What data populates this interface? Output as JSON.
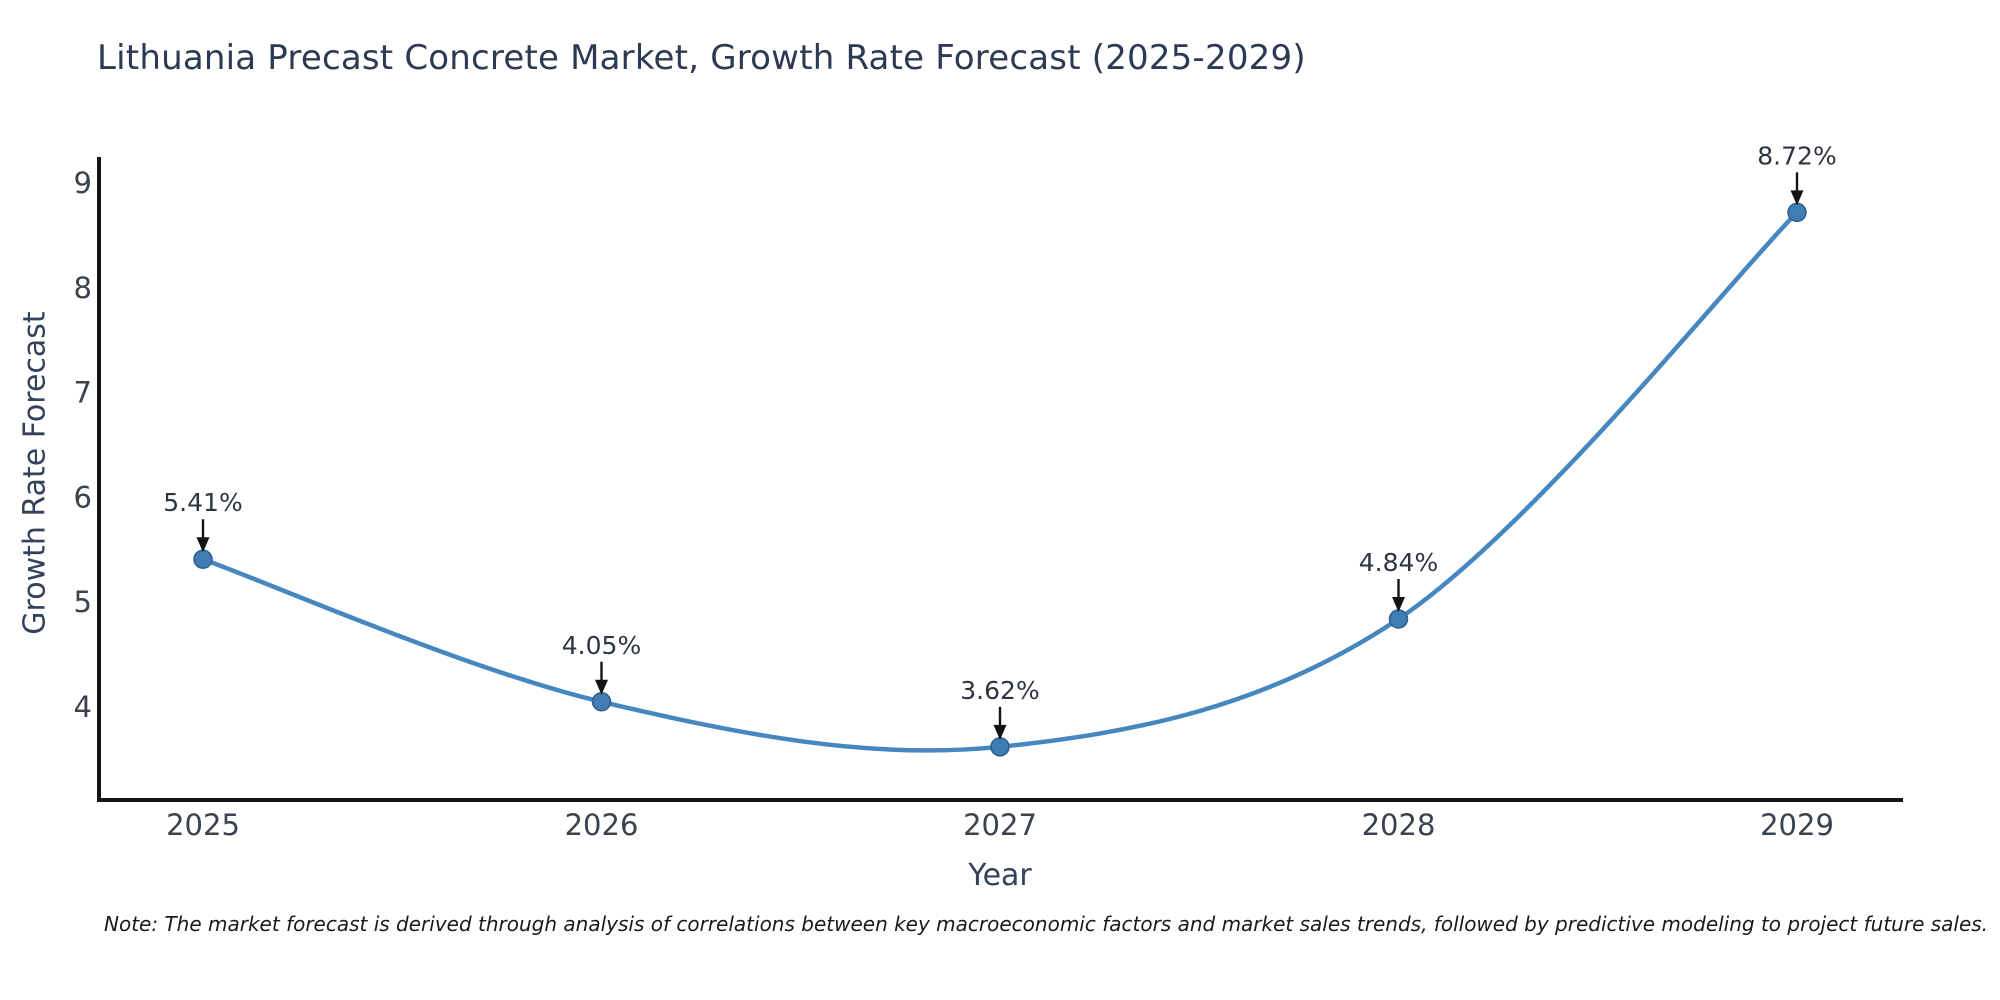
{
  "chart_data": {
    "type": "line",
    "title": "Lithuania Precast Concrete Market, Growth Rate Forecast (2025-2029)",
    "xlabel": "Year",
    "ylabel": "Growth Rate Forecast",
    "categories": [
      "2025",
      "2026",
      "2027",
      "2028",
      "2029"
    ],
    "series": [
      {
        "name": "Growth Rate Forecast",
        "values": [
          5.41,
          4.05,
          3.62,
          4.84,
          8.72
        ],
        "point_labels": [
          "5.41%",
          "4.05%",
          "3.62%",
          "4.84%",
          "8.72%"
        ],
        "style": "smooth-spline",
        "markers": true
      }
    ],
    "yticks": [
      4,
      5,
      6,
      7,
      8,
      9
    ],
    "ylim": [
      3.1,
      9.25
    ],
    "grid": false,
    "legend": "none",
    "colors": {
      "line": "#4787bf",
      "marker_fill": "#3f7db4",
      "marker_edge": "#2d5f8e",
      "axis_spine": "#141414",
      "tick_label": "#3a4250",
      "annotation_label": "#2e3540",
      "annotation_arrow": "#141414"
    }
  },
  "note": {
    "text": "Note: The market forecast is derived through analysis of correlations between key macroeconomic factors and market sales trends, followed by predictive modeling to project future sales."
  }
}
